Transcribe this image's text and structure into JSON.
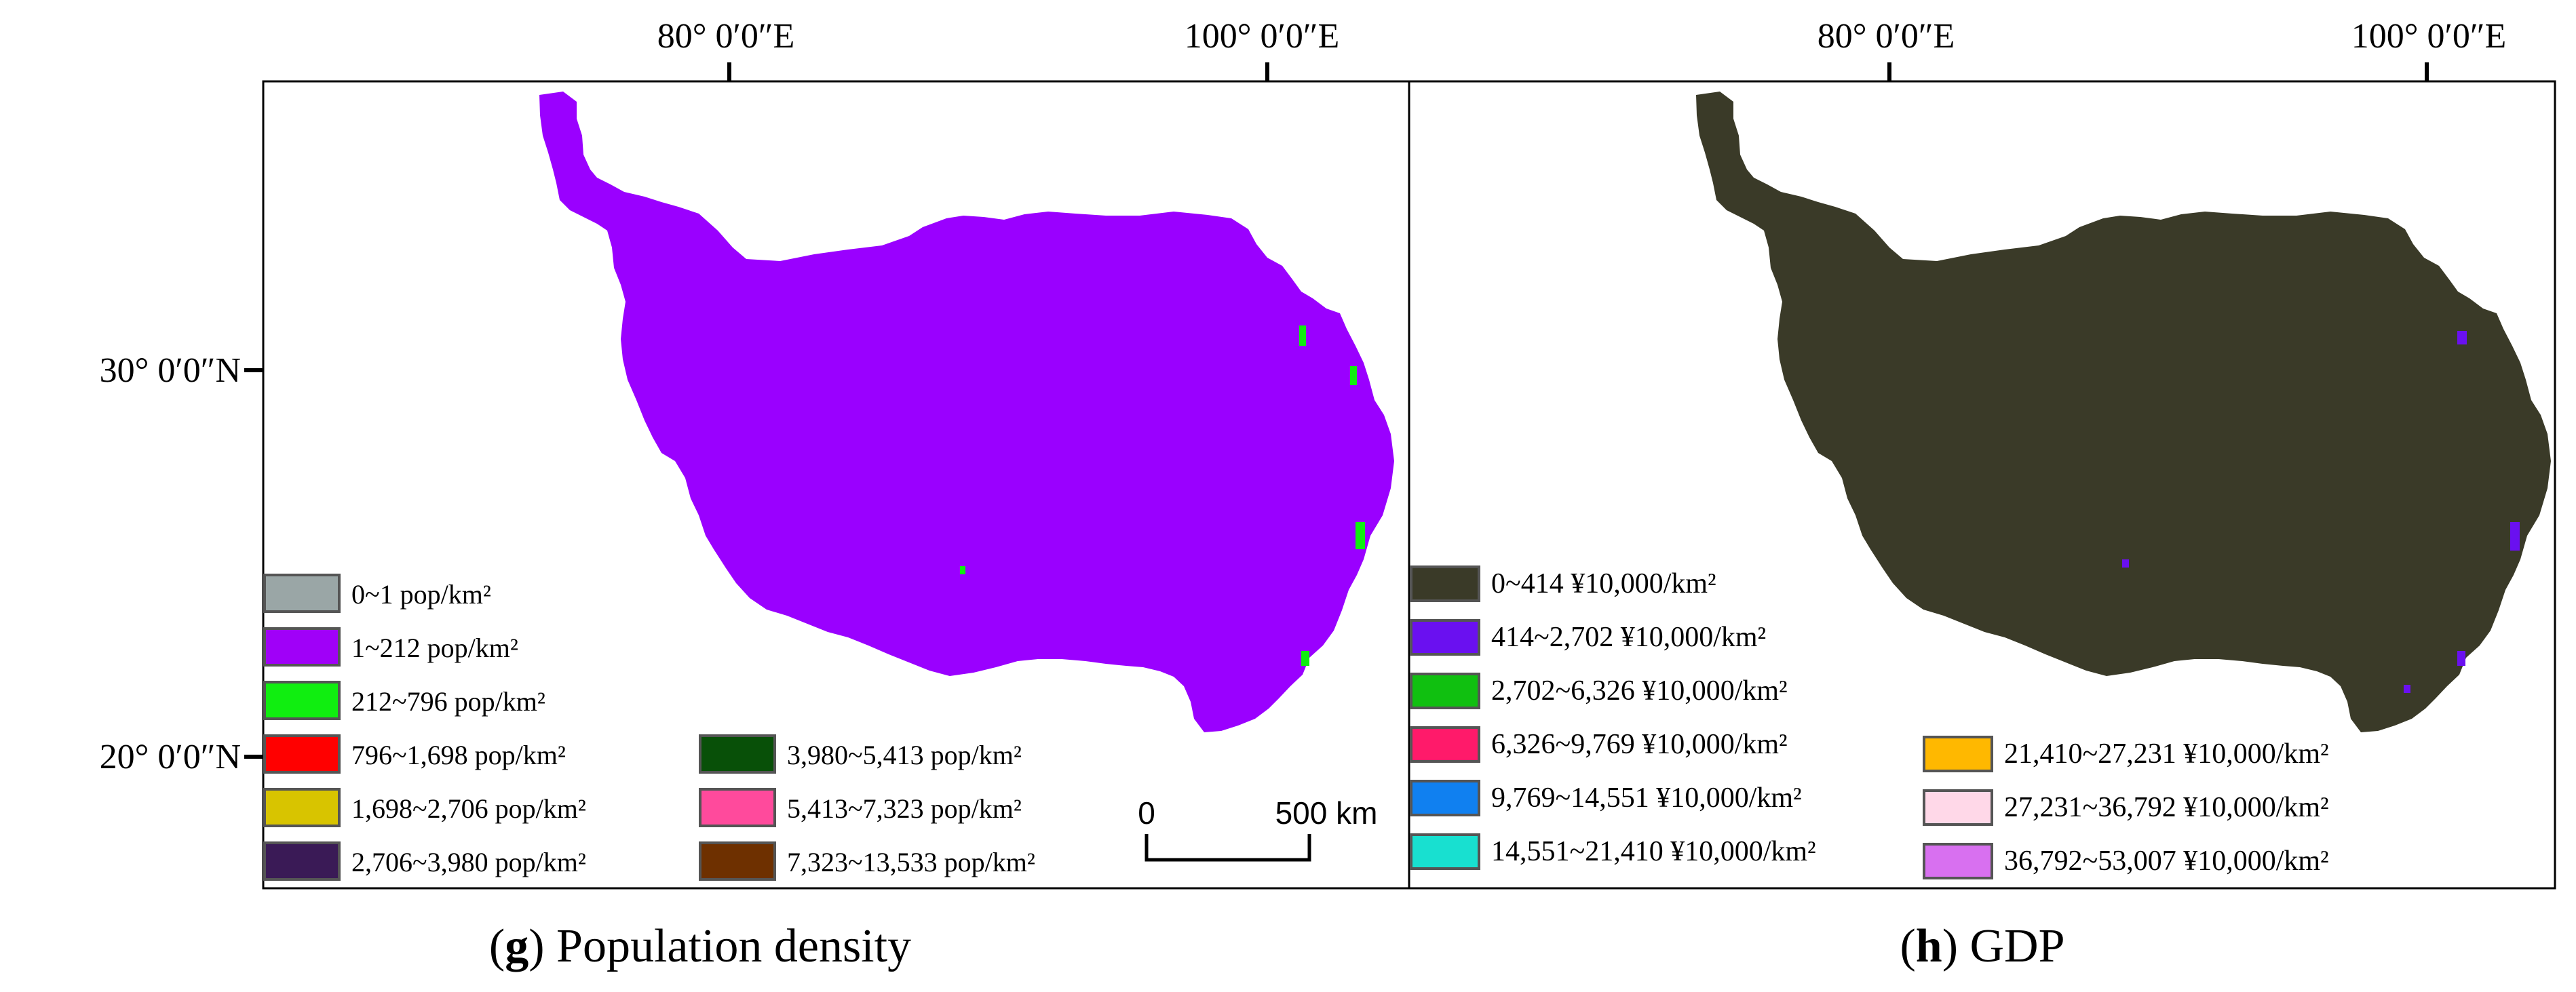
{
  "graticule": {
    "top": [
      "80°  0′0″E",
      "100°  0′0″E"
    ],
    "left": [
      "30°  0′0″N",
      "20°  0′0″N"
    ]
  },
  "panels": [
    {
      "id": "g",
      "letter": "g",
      "caption": "Population density",
      "region_color": "#9a00ff",
      "legend": [
        {
          "label": "0~1  pop/km²",
          "color": "#9aa6a6"
        },
        {
          "label": "1~212  pop/km²",
          "color": "#a000f8"
        },
        {
          "label": "212~796  pop/km²",
          "color": "#10ee10"
        },
        {
          "label": "796~1,698  pop/km²",
          "color": "#ff0000"
        },
        {
          "label": "1,698~2,706  pop/km²",
          "color": "#d8c400"
        },
        {
          "label": "2,706~3,980  pop/km²",
          "color": "#3a1a56"
        },
        {
          "label": "3,980~5,413  pop/km²",
          "color": "#085008"
        },
        {
          "label": "5,413~7,323  pop/km²",
          "color": "#ff4a9c"
        },
        {
          "label": "7,323~13,533  pop/km²",
          "color": "#6e3000"
        }
      ],
      "scale_bar": {
        "start": "0",
        "end": "500 km"
      }
    },
    {
      "id": "h",
      "letter": "h",
      "caption": "GDP",
      "region_color": "#3a3a28",
      "legend": [
        {
          "label": "0~414 ¥10,000/km²",
          "color": "#3a3a28"
        },
        {
          "label": "414~2,702 ¥10,000/km²",
          "color": "#6a10f0"
        },
        {
          "label": "2,702~6,326 ¥10,000/km²",
          "color": "#10c010"
        },
        {
          "label": "6,326~9,769 ¥10,000/km²",
          "color": "#ff1a6a"
        },
        {
          "label": "9,769~14,551 ¥10,000/km²",
          "color": "#1080f0"
        },
        {
          "label": "14,551~21,410 ¥10,000/km²",
          "color": "#18e0d0"
        },
        {
          "label": "21,410~27,231 ¥10,000/km²",
          "color": "#ffb800"
        },
        {
          "label": "27,231~36,792 ¥10,000/km²",
          "color": "#ffd8e8"
        },
        {
          "label": "36,792~53,007 ¥10,000/km²",
          "color": "#d870f0"
        }
      ]
    }
  ]
}
